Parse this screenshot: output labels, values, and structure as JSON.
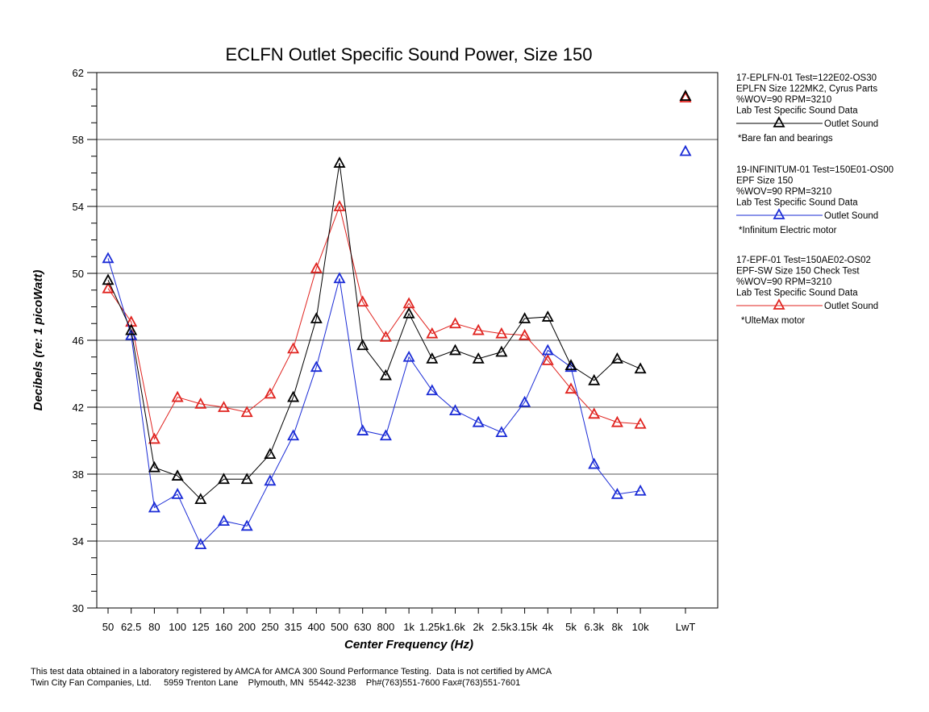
{
  "chart_data": {
    "type": "line",
    "title": "ECLFN Outlet Specific Sound Power, Size 150",
    "xlabel": "Center Frequency (Hz)",
    "ylabel": "Decibels (re: 1 picoWatt)",
    "ylim": [
      30,
      62
    ],
    "yticks": [
      30,
      34,
      38,
      42,
      46,
      50,
      54,
      58,
      62
    ],
    "grid": "horizontal",
    "legend_placement": "right",
    "categories": [
      "50",
      "62.5",
      "80",
      "100",
      "125",
      "160",
      "200",
      "250",
      "315",
      "400",
      "500",
      "630",
      "800",
      "1k",
      "1.25k",
      "1.6k",
      "2k",
      "2.5k",
      "3.15k",
      "4k",
      "5k",
      "6.3k",
      "8k",
      "10k",
      "LwT"
    ],
    "series": [
      {
        "name": "Outlet Sound",
        "color": "#000000",
        "values": [
          49.6,
          46.6,
          38.4,
          37.9,
          36.5,
          37.7,
          37.7,
          39.2,
          42.6,
          47.3,
          56.6,
          45.7,
          43.9,
          47.6,
          44.9,
          45.4,
          44.9,
          45.3,
          47.3,
          47.4,
          44.5,
          43.6,
          44.9,
          44.3,
          60.6
        ],
        "legend": {
          "lines": [
            "17-EPLFN-01 Test=122E02-OS30",
            "EPLFN Size 122MK2, Cyrus Parts",
            "%WOV=90 RPM=3210",
            "Lab Test Specific Sound Data"
          ],
          "note": "*Bare fan and bearings"
        }
      },
      {
        "name": "Outlet Sound",
        "color": "#1a2bd6",
        "values": [
          50.9,
          46.3,
          36.0,
          36.8,
          33.8,
          35.2,
          34.9,
          37.6,
          40.3,
          44.4,
          49.7,
          40.6,
          40.3,
          45.0,
          43.0,
          41.8,
          41.1,
          40.5,
          42.3,
          45.4,
          44.4,
          38.6,
          36.8,
          37.0,
          57.3
        ],
        "legend": {
          "lines": [
            "19-INFINITUM-01 Test=150E01-OS00",
            "EPF Size 150",
            "%WOV=90 RPM=3210",
            "Lab Test Specific Sound Data"
          ],
          "note": "*Infinitum Electric motor"
        }
      },
      {
        "name": "Outlet Sound",
        "color": "#e0231f",
        "values": [
          49.1,
          47.1,
          40.1,
          42.6,
          42.2,
          42.0,
          41.7,
          42.8,
          45.5,
          50.3,
          54.0,
          48.3,
          46.2,
          48.2,
          46.4,
          47.0,
          46.6,
          46.4,
          46.3,
          44.8,
          43.1,
          41.6,
          41.1,
          41.0,
          60.5
        ],
        "legend": {
          "lines": [
            "17-EPF-01 Test=150AE02-OS02",
            "EPF-SW Size 150 Check Test",
            "%WOV=90 RPM=3210",
            "Lab Test Specific Sound Data"
          ],
          "note": "*UlteMax motor"
        }
      }
    ]
  },
  "footer": {
    "line1": "This test data obtained in a laboratory registered by AMCA for AMCA 300 Sound Performance Testing.  Data is not certified by AMCA",
    "line2": "Twin City Fan Companies, Ltd.     5959 Trenton Lane    Plymouth, MN  55442-3238    Ph#(763)551-7600 Fax#(763)551-7601"
  }
}
